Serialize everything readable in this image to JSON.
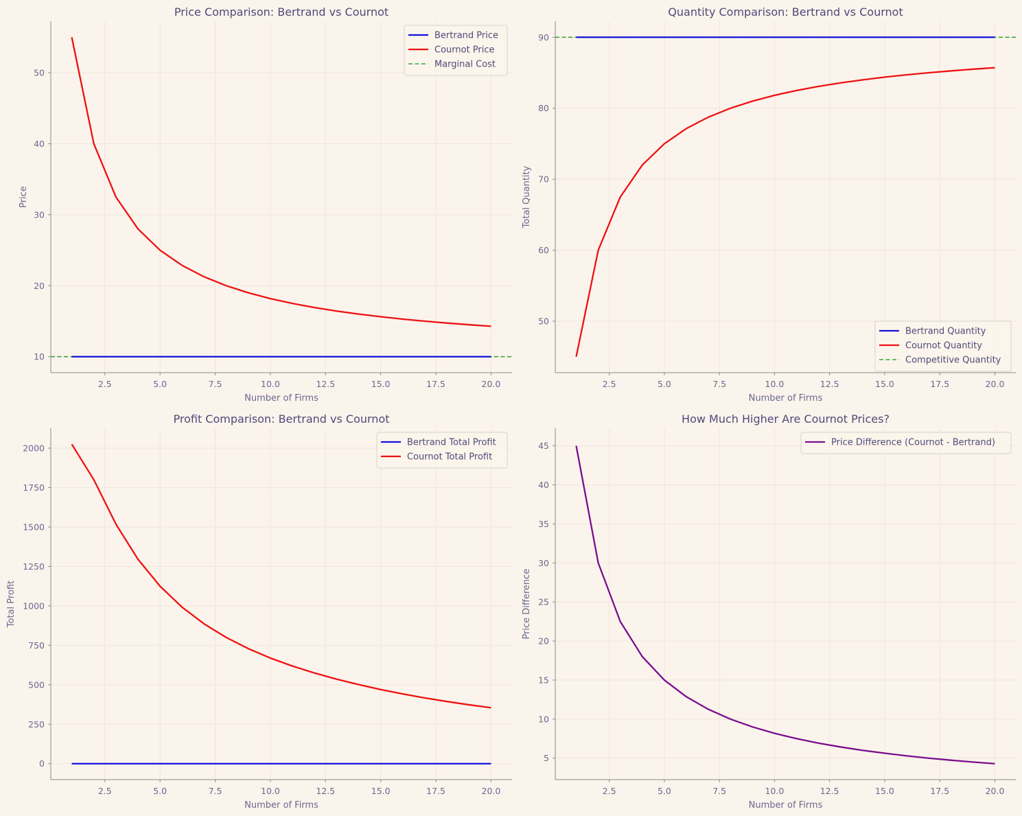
{
  "colors": {
    "background": "#fbf4ec",
    "bertrand": "#1212dd",
    "cournot": "#ee1111",
    "reference": "#3aa63a",
    "difference": "#7a0d8f",
    "grid": "#efe6dc",
    "axis": "#8a8a8a"
  },
  "chart_data": [
    {
      "type": "line",
      "title": "Price Comparison: Bertrand vs Cournot",
      "xlabel": "Number of Firms",
      "ylabel": "Price",
      "xlim": [
        0.05,
        20.95
      ],
      "ylim": [
        7.75,
        57.25
      ],
      "xticks": [
        2.5,
        5.0,
        7.5,
        10.0,
        12.5,
        15.0,
        17.5,
        20.0
      ],
      "xtick_labels": [
        "2.5",
        "5.0",
        "7.5",
        "10.0",
        "12.5",
        "15.0",
        "17.5",
        "20.0"
      ],
      "yticks": [
        10,
        20,
        30,
        40,
        50
      ],
      "ytick_labels": [
        "10",
        "20",
        "30",
        "40",
        "50"
      ],
      "legend_position": "top-right",
      "x": [
        1,
        2,
        3,
        4,
        5,
        6,
        7,
        8,
        9,
        10,
        11,
        12,
        13,
        14,
        15,
        16,
        17,
        18,
        19,
        20
      ],
      "series": [
        {
          "name": "Bertrand Price",
          "color": "#1212dd",
          "style": "solid",
          "values": [
            10,
            10,
            10,
            10,
            10,
            10,
            10,
            10,
            10,
            10,
            10,
            10,
            10,
            10,
            10,
            10,
            10,
            10,
            10,
            10
          ]
        },
        {
          "name": "Cournot Price",
          "color": "#ee1111",
          "style": "solid",
          "values": [
            55,
            40,
            32.5,
            28,
            25,
            22.86,
            21.25,
            20,
            19,
            18.18,
            17.5,
            16.92,
            16.43,
            16,
            15.63,
            15.29,
            15,
            14.74,
            14.5,
            14.29
          ]
        }
      ],
      "reference_lines": [
        {
          "name": "Marginal Cost",
          "color": "#3aa63a",
          "style": "dashed",
          "y": 10
        }
      ]
    },
    {
      "type": "line",
      "title": "Quantity Comparison: Bertrand vs Cournot",
      "xlabel": "Number of Firms",
      "ylabel": "Total Quantity",
      "xlim": [
        0.05,
        20.95
      ],
      "ylim": [
        42.75,
        92.25
      ],
      "xticks": [
        2.5,
        5.0,
        7.5,
        10.0,
        12.5,
        15.0,
        17.5,
        20.0
      ],
      "xtick_labels": [
        "2.5",
        "5.0",
        "7.5",
        "10.0",
        "12.5",
        "15.0",
        "17.5",
        "20.0"
      ],
      "yticks": [
        50,
        60,
        70,
        80,
        90
      ],
      "ytick_labels": [
        "50",
        "60",
        "70",
        "80",
        "90"
      ],
      "legend_position": "bottom-right",
      "x": [
        1,
        2,
        3,
        4,
        5,
        6,
        7,
        8,
        9,
        10,
        11,
        12,
        13,
        14,
        15,
        16,
        17,
        18,
        19,
        20
      ],
      "series": [
        {
          "name": "Bertrand Quantity",
          "color": "#1212dd",
          "style": "solid",
          "values": [
            90,
            90,
            90,
            90,
            90,
            90,
            90,
            90,
            90,
            90,
            90,
            90,
            90,
            90,
            90,
            90,
            90,
            90,
            90,
            90
          ]
        },
        {
          "name": "Cournot Quantity",
          "color": "#ee1111",
          "style": "solid",
          "values": [
            45,
            60,
            67.5,
            72,
            75,
            77.14,
            78.75,
            80,
            81,
            81.82,
            82.5,
            83.08,
            83.57,
            84,
            84.38,
            84.71,
            85,
            85.26,
            85.5,
            85.71
          ]
        }
      ],
      "reference_lines": [
        {
          "name": "Competitive Quantity",
          "color": "#3aa63a",
          "style": "dashed",
          "y": 90
        }
      ]
    },
    {
      "type": "line",
      "title": "Profit Comparison: Bertrand vs Cournot",
      "xlabel": "Number of Firms",
      "ylabel": "Total Profit",
      "xlim": [
        0.05,
        20.95
      ],
      "ylim": [
        -101.25,
        2126.25
      ],
      "xticks": [
        2.5,
        5.0,
        7.5,
        10.0,
        12.5,
        15.0,
        17.5,
        20.0
      ],
      "xtick_labels": [
        "2.5",
        "5.0",
        "7.5",
        "10.0",
        "12.5",
        "15.0",
        "17.5",
        "20.0"
      ],
      "yticks": [
        0,
        250,
        500,
        750,
        1000,
        1250,
        1500,
        1750,
        2000
      ],
      "ytick_labels": [
        "0",
        "250",
        "500",
        "750",
        "1000",
        "1250",
        "1500",
        "1750",
        "2000"
      ],
      "legend_position": "top-right",
      "x": [
        1,
        2,
        3,
        4,
        5,
        6,
        7,
        8,
        9,
        10,
        11,
        12,
        13,
        14,
        15,
        16,
        17,
        18,
        19,
        20
      ],
      "series": [
        {
          "name": "Bertrand Total Profit",
          "color": "#1212dd",
          "style": "solid",
          "values": [
            0,
            0,
            0,
            0,
            0,
            0,
            0,
            0,
            0,
            0,
            0,
            0,
            0,
            0,
            0,
            0,
            0,
            0,
            0,
            0
          ]
        },
        {
          "name": "Cournot Total Profit",
          "color": "#ee1111",
          "style": "solid",
          "values": [
            2025,
            1800,
            1518.75,
            1296,
            1125,
            991.84,
            885.94,
            800,
            729,
            669.42,
            618.75,
            574.56,
            535.71,
            501.12,
            469.92,
            441.87,
            416.67,
            393.91,
            373.21,
            354.29
          ]
        }
      ],
      "reference_lines": []
    },
    {
      "type": "line",
      "title": "How Much Higher Are Cournot Prices?",
      "xlabel": "Number of Firms",
      "ylabel": "Price Difference",
      "xlim": [
        0.05,
        20.95
      ],
      "ylim": [
        2.25,
        47.25
      ],
      "xticks": [
        2.5,
        5.0,
        7.5,
        10.0,
        12.5,
        15.0,
        17.5,
        20.0
      ],
      "xtick_labels": [
        "2.5",
        "5.0",
        "7.5",
        "10.0",
        "12.5",
        "15.0",
        "17.5",
        "20.0"
      ],
      "yticks": [
        5,
        10,
        15,
        20,
        25,
        30,
        35,
        40,
        45
      ],
      "ytick_labels": [
        "5",
        "10",
        "15",
        "20",
        "25",
        "30",
        "35",
        "40",
        "45"
      ],
      "legend_position": "top-right",
      "x": [
        1,
        2,
        3,
        4,
        5,
        6,
        7,
        8,
        9,
        10,
        11,
        12,
        13,
        14,
        15,
        16,
        17,
        18,
        19,
        20
      ],
      "series": [
        {
          "name": "Price Difference (Cournot - Bertrand)",
          "color": "#7a0d8f",
          "style": "solid",
          "values": [
            45,
            30,
            22.5,
            18,
            15,
            12.86,
            11.25,
            10,
            9,
            8.18,
            7.5,
            6.92,
            6.43,
            6,
            5.63,
            5.29,
            5,
            4.74,
            4.5,
            4.29
          ]
        }
      ],
      "reference_lines": []
    }
  ]
}
